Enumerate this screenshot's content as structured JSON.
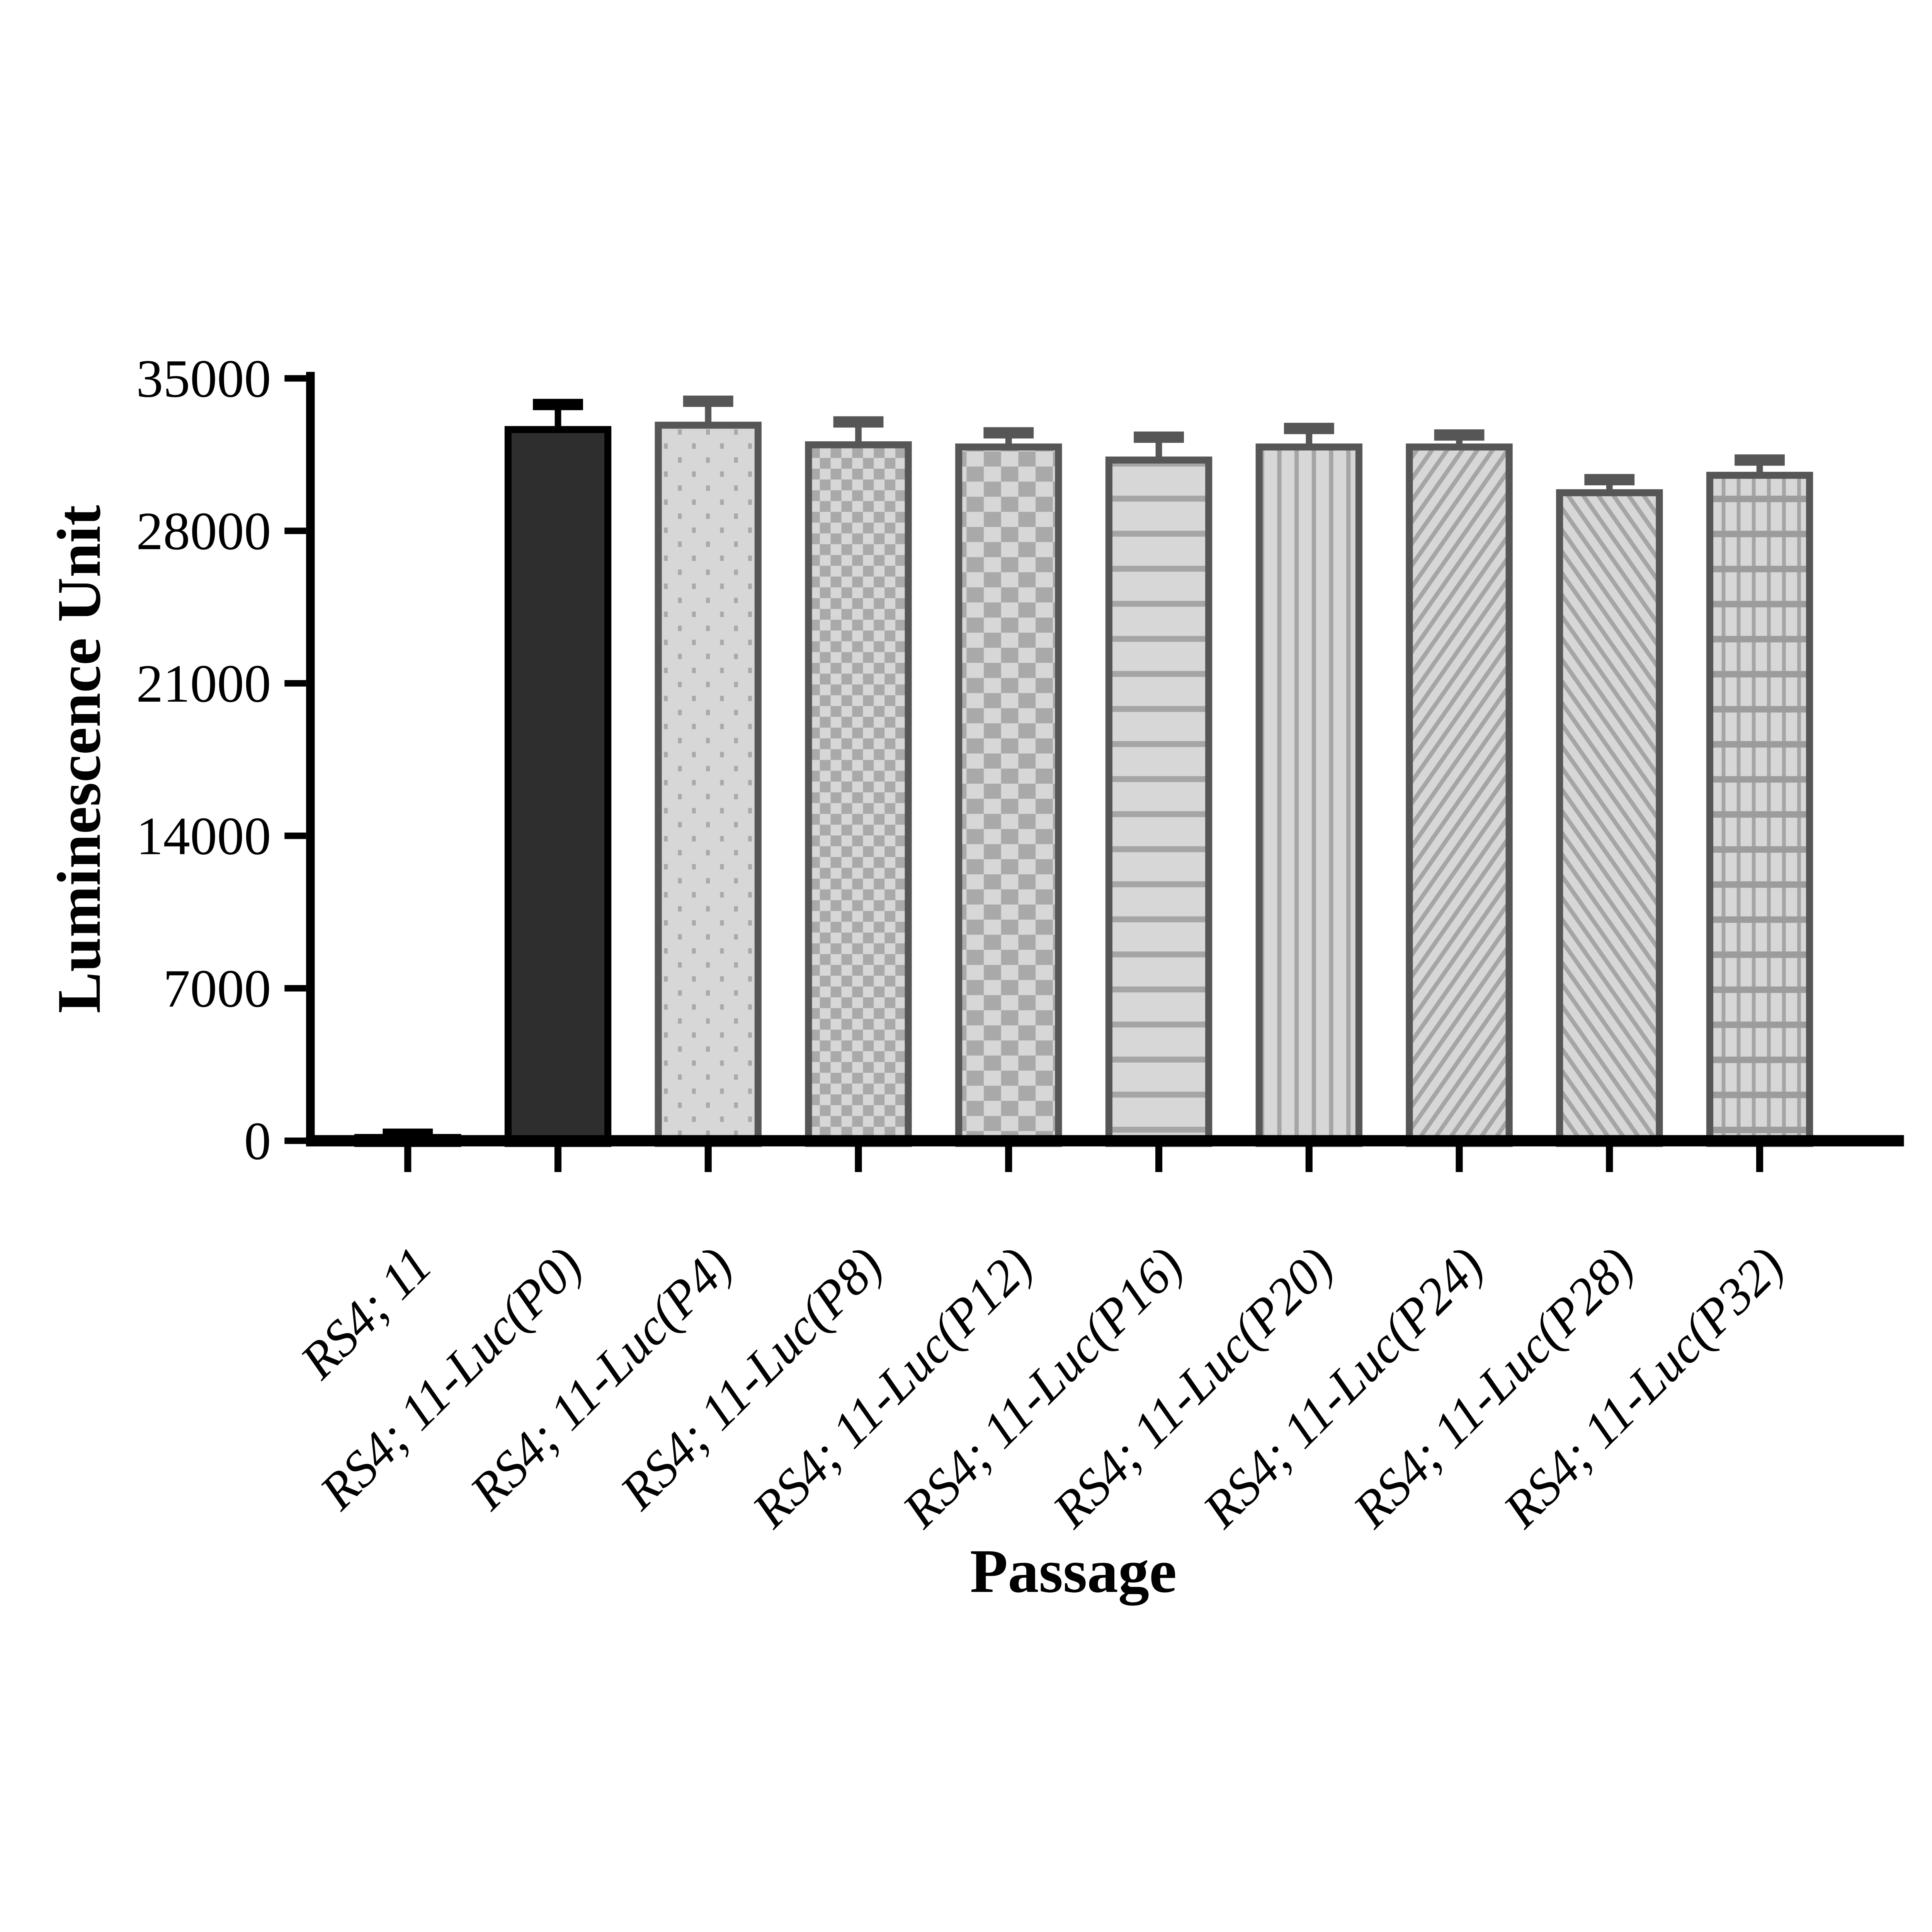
{
  "chart_data": {
    "type": "bar",
    "title": "",
    "xlabel": "Passage",
    "ylabel": "Luminescence Unit",
    "ylim": [
      0,
      35000
    ],
    "yticks": [
      0,
      7000,
      14000,
      21000,
      28000,
      35000
    ],
    "grid": false,
    "legend_position": "none",
    "categories": [
      "RS4; 11",
      "RS4; 11-Luc(P0)",
      "RS4; 11-Luc(P4)",
      "RS4; 11-Luc(P8)",
      "RS4; 11-Luc(P12)",
      "RS4; 11-Luc(P16)",
      "RS4; 11-Luc(P20)",
      "RS4; 11-Luc(P24)",
      "RS4; 11-Luc(P28)",
      "RS4; 11-Luc(P32)"
    ],
    "values": [
      150,
      32650,
      32850,
      31950,
      31850,
      31250,
      31850,
      31850,
      29750,
      30550
    ],
    "errors": [
      150,
      1150,
      1100,
      1050,
      650,
      1050,
      850,
      550,
      600,
      700
    ],
    "error_type": "upper-only",
    "bar_patterns": [
      "solid-black",
      "solid-dark",
      "dots",
      "checker-small",
      "checker-large",
      "lines-horizontal",
      "lines-vertical",
      "lines-diagonal-up",
      "lines-diagonal-down",
      "grid"
    ],
    "colors": {
      "black": "#000000",
      "dark_bar_fill": "#2e2e2e",
      "light_bar_fill": "#d7d7d7",
      "pattern_line": "#a5a5a5",
      "gray_border": "#565656",
      "background": "#ffffff"
    }
  }
}
